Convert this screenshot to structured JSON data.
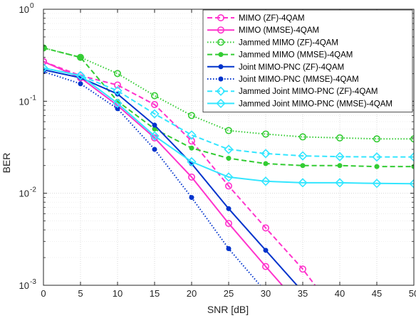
{
  "chart_data": {
    "type": "line",
    "title": "",
    "xlabel": "SNR [dB]",
    "ylabel": "BER",
    "xlim": [
      0,
      50
    ],
    "ylim": [
      0.001,
      1
    ],
    "yscale": "log",
    "grid": true,
    "legend_position": "top-right",
    "x_ticks": [
      "0",
      "5",
      "10",
      "15",
      "20",
      "25",
      "30",
      "35",
      "40",
      "45",
      "50"
    ],
    "y_ticks": [
      {
        "base": "10",
        "exp": "0"
      },
      {
        "base": "10",
        "exp": "-1"
      },
      {
        "base": "10",
        "exp": "-2"
      },
      {
        "base": "10",
        "exp": "-3"
      }
    ],
    "series": [
      {
        "name": "MIMO (ZF)-4QAM",
        "color": "#ff33cc",
        "dash": "dashed",
        "marker": "circle",
        "x": [
          0,
          5,
          10,
          15,
          20,
          25,
          30,
          35,
          38
        ],
        "y": [
          0.27,
          0.19,
          0.15,
          0.092,
          0.037,
          0.012,
          0.0042,
          0.0015,
          0.00072
        ]
      },
      {
        "name": "MIMO (MMSE)-4QAM",
        "color": "#ff33cc",
        "dash": "solid",
        "marker": "circle",
        "x": [
          0,
          5,
          10,
          15,
          20,
          25,
          30,
          33
        ],
        "y": [
          0.27,
          0.18,
          0.09,
          0.04,
          0.015,
          0.0047,
          0.0016,
          0.00085
        ]
      },
      {
        "name": "Jammed MIMO (ZF)-4QAM",
        "color": "#33cc33",
        "dash": "dotted",
        "marker": "circle",
        "x": [
          0,
          5,
          10,
          15,
          20,
          25,
          30,
          35,
          40,
          45,
          50
        ],
        "y": [
          0.38,
          0.3,
          0.2,
          0.115,
          0.07,
          0.048,
          0.044,
          0.041,
          0.04,
          0.039,
          0.039
        ]
      },
      {
        "name": "Jammed MIMO (MMSE)-4QAM",
        "color": "#33cc33",
        "dash": "dashed",
        "marker": "dot",
        "x": [
          0,
          5,
          10,
          15,
          20,
          25,
          30,
          35,
          40,
          45,
          50
        ],
        "y": [
          0.38,
          0.3,
          0.1,
          0.05,
          0.031,
          0.024,
          0.021,
          0.02,
          0.02,
          0.0195,
          0.0195
        ]
      },
      {
        "name": "Joint MIMO-PNC (ZF)-4QAM",
        "color": "#0033cc",
        "dash": "solid",
        "marker": "dot",
        "x": [
          0,
          5,
          10,
          15,
          20,
          25,
          30,
          35
        ],
        "y": [
          0.22,
          0.18,
          0.12,
          0.055,
          0.021,
          0.0068,
          0.0024,
          0.00085
        ]
      },
      {
        "name": "Joint MIMO-PNC (MMSE)-4QAM",
        "color": "#0033cc",
        "dash": "dotted",
        "marker": "dot",
        "x": [
          0,
          5,
          10,
          15,
          20,
          25,
          30
        ],
        "y": [
          0.21,
          0.155,
          0.083,
          0.03,
          0.009,
          0.0025,
          0.00085
        ]
      },
      {
        "name": "Jammed Joint MIMO-PNC (ZF)-4QAM",
        "color": "#33e6ff",
        "dash": "dashed",
        "marker": "diamond",
        "x": [
          0,
          5,
          10,
          15,
          20,
          25,
          30,
          35,
          40,
          45,
          50
        ],
        "y": [
          0.23,
          0.19,
          0.13,
          0.073,
          0.043,
          0.03,
          0.027,
          0.0255,
          0.025,
          0.0248,
          0.0248
        ]
      },
      {
        "name": "Jammed Joint MIMO-PNC (MMSE)-4QAM",
        "color": "#33e6ff",
        "dash": "solid",
        "marker": "diamond",
        "x": [
          0,
          5,
          10,
          15,
          20,
          25,
          30,
          35,
          40,
          45,
          50
        ],
        "y": [
          0.23,
          0.19,
          0.095,
          0.042,
          0.022,
          0.015,
          0.0135,
          0.013,
          0.013,
          0.0128,
          0.0127
        ]
      }
    ]
  }
}
